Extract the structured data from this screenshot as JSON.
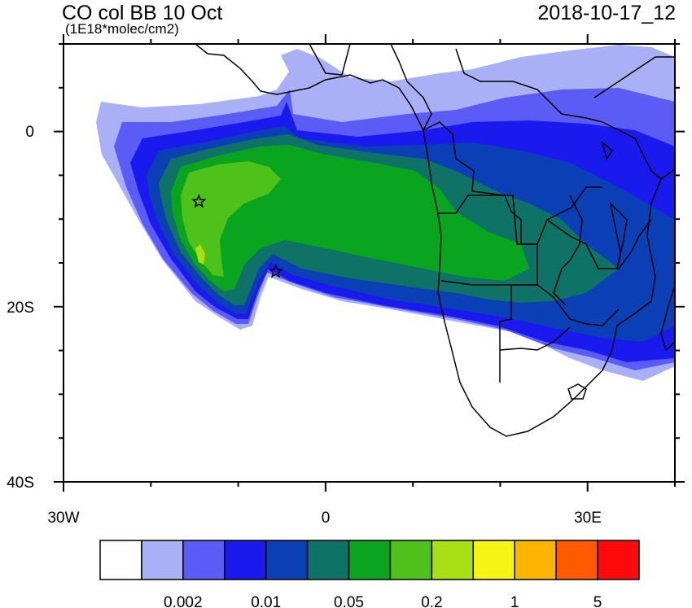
{
  "title": "CO col BB 10 Oct",
  "units": "(1E18*molec/cm2)",
  "time": "2018-10-17_12",
  "map": {
    "lon_range": [
      -30,
      40
    ],
    "lat_range": [
      -40,
      10
    ],
    "lon_ticks": [
      {
        "value": -30,
        "label": "30W"
      },
      {
        "value": 0,
        "label": "0"
      },
      {
        "value": 30,
        "label": "30E"
      }
    ],
    "lat_ticks": [
      {
        "value": 0,
        "label": "0"
      },
      {
        "value": -20,
        "label": "20S"
      },
      {
        "value": -40,
        "label": "40S"
      }
    ],
    "markers": [
      {
        "name": "star-marker-1",
        "lon": -14.5,
        "lat": -8
      },
      {
        "name": "star-marker-2",
        "lon": -5.7,
        "lat": -16
      }
    ]
  },
  "colorbar": {
    "colors": [
      "#ffffff",
      "#aab0f5",
      "#5b5cf5",
      "#1a1aef",
      "#0a3fb5",
      "#0e7366",
      "#0aa51e",
      "#4ec21a",
      "#a8e015",
      "#f4f515",
      "#ffb400",
      "#ff5a00",
      "#ff0a0a"
    ],
    "labels": [
      "0.002",
      "0.01",
      "0.05",
      "0.2",
      "1",
      "5"
    ]
  }
}
